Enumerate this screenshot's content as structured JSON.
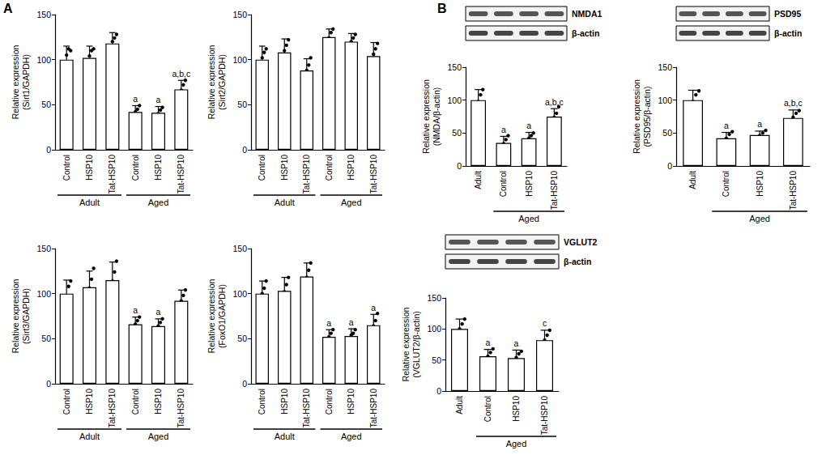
{
  "panel_labels": [
    "A",
    "B"
  ],
  "chart_data": [
    {
      "type": "bar",
      "ylabel": "Relative expression\n(Sirt1/GAPDH)",
      "categories": [
        "Control",
        "HSP10",
        "Tat-HSP10",
        "Control",
        "HSP10",
        "Tat-HSP10"
      ],
      "category_groups": [
        "Adult",
        "Adult",
        "Adult",
        "Aged",
        "Aged",
        "Aged"
      ],
      "values": [
        100,
        102,
        118,
        42,
        41,
        67
      ],
      "errors": [
        15,
        13,
        12,
        7,
        7,
        10
      ],
      "points": [
        [
          85,
          92,
          105,
          112,
          110
        ],
        [
          88,
          96,
          104,
          110,
          112
        ],
        [
          104,
          112,
          120,
          124,
          128
        ],
        [
          36,
          38,
          42,
          45,
          49
        ],
        [
          34,
          38,
          40,
          44,
          47
        ],
        [
          58,
          62,
          66,
          72,
          77
        ]
      ],
      "letters": [
        null,
        null,
        null,
        "a",
        "a",
        "a,b,c"
      ],
      "color": "#ffffff",
      "ylim": [
        0,
        150
      ],
      "yticks": [
        0,
        50,
        100,
        150
      ],
      "grid": false
    },
    {
      "type": "bar",
      "ylabel": "Relative expression\n(Sirt2/GAPDH)",
      "categories": [
        "Control",
        "HSP10",
        "Tat-HSP10",
        "Control",
        "HSP10",
        "Tat-HSP10"
      ],
      "category_groups": [
        "Adult",
        "Adult",
        "Adult",
        "Aged",
        "Aged",
        "Aged"
      ],
      "values": [
        100,
        108,
        88,
        125,
        120,
        104
      ],
      "errors": [
        15,
        15,
        13,
        9,
        9,
        15
      ],
      "points": [
        [
          85,
          95,
          102,
          108,
          112
        ],
        [
          94,
          100,
          110,
          116,
          122
        ],
        [
          74,
          82,
          88,
          94,
          102
        ],
        [
          115,
          120,
          124,
          130,
          134
        ],
        [
          110,
          116,
          120,
          124,
          128
        ],
        [
          88,
          96,
          106,
          112,
          118
        ]
      ],
      "letters": [
        null,
        null,
        null,
        null,
        null,
        null
      ],
      "color": "#ffffff",
      "ylim": [
        0,
        150
      ],
      "yticks": [
        0,
        50,
        100,
        150
      ],
      "grid": false
    },
    {
      "type": "bar",
      "ylabel": "Relative expression\n(Sirt3/GAPDH)",
      "categories": [
        "Control",
        "HSP10",
        "Tat-HSP10",
        "Control",
        "HSP10",
        "Tat-HSP10"
      ],
      "category_groups": [
        "Adult",
        "Adult",
        "Adult",
        "Aged",
        "Aged",
        "Aged"
      ],
      "values": [
        100,
        107,
        115,
        66,
        64,
        92
      ],
      "errors": [
        15,
        18,
        20,
        8,
        8,
        12
      ],
      "points": [
        [
          86,
          92,
          98,
          108,
          114
        ],
        [
          88,
          96,
          106,
          116,
          128
        ],
        [
          96,
          104,
          114,
          124,
          136
        ],
        [
          58,
          62,
          66,
          70,
          74
        ],
        [
          56,
          60,
          64,
          68,
          72
        ],
        [
          80,
          86,
          92,
          98,
          104
        ]
      ],
      "letters": [
        null,
        null,
        null,
        "a",
        "a",
        null
      ],
      "color": "#ffffff",
      "ylim": [
        0,
        150
      ],
      "yticks": [
        0,
        50,
        100,
        150
      ],
      "grid": false
    },
    {
      "type": "bar",
      "ylabel": "Relative expression\n(FoxO1/GAPDH)",
      "categories": [
        "Control",
        "HSP10",
        "Tat-HSP10",
        "Control",
        "HSP10",
        "Tat-HSP10"
      ],
      "category_groups": [
        "Adult",
        "Adult",
        "Adult",
        "Aged",
        "Aged",
        "Aged"
      ],
      "values": [
        100,
        103,
        119,
        52,
        53,
        65
      ],
      "errors": [
        14,
        15,
        15,
        8,
        8,
        12
      ],
      "points": [
        [
          86,
          92,
          100,
          106,
          114
        ],
        [
          88,
          96,
          102,
          110,
          118
        ],
        [
          104,
          112,
          118,
          126,
          134
        ],
        [
          44,
          48,
          52,
          56,
          60
        ],
        [
          44,
          50,
          54,
          56,
          60
        ],
        [
          52,
          58,
          64,
          70,
          78
        ]
      ],
      "letters": [
        null,
        null,
        null,
        "a",
        "a",
        "a"
      ],
      "color": "#ffffff",
      "ylim": [
        0,
        150
      ],
      "yticks": [
        0,
        50,
        100,
        150
      ],
      "grid": false
    },
    {
      "type": "bar",
      "ylabel": "Relative expression\n(NMDA/β-actin)",
      "blot_labels": [
        "NMDA1",
        "β-actin"
      ],
      "categories": [
        "Adult",
        "Control",
        "HSP10",
        "Tat-HSP10"
      ],
      "category_groups": [
        null,
        "Aged",
        "Aged",
        "Aged"
      ],
      "values": [
        100,
        35,
        42,
        75
      ],
      "errors": [
        16,
        10,
        9,
        12
      ],
      "points": [
        [
          86,
          92,
          98,
          108,
          116
        ],
        [
          24,
          30,
          34,
          40,
          46
        ],
        [
          34,
          38,
          42,
          46,
          50
        ],
        [
          62,
          68,
          74,
          80,
          90
        ]
      ],
      "letters": [
        null,
        "a",
        "a",
        "a,b,c"
      ],
      "color": "#ffffff",
      "ylim": [
        0,
        150
      ],
      "yticks": [
        0,
        50,
        100,
        150
      ],
      "grid": false
    },
    {
      "type": "bar",
      "ylabel": "Relative expression\n(PSD95/β-actin)",
      "blot_labels": [
        "PSD95",
        "β-actin"
      ],
      "categories": [
        "Adult",
        "Control",
        "HSP10",
        "Tat-HSP10"
      ],
      "category_groups": [
        null,
        "Aged",
        "Aged",
        "Aged"
      ],
      "values": [
        100,
        42,
        47,
        73
      ],
      "errors": [
        15,
        9,
        6,
        12
      ],
      "points": [
        [
          86,
          92,
          98,
          108,
          114
        ],
        [
          32,
          36,
          42,
          48,
          52
        ],
        [
          40,
          44,
          46,
          50,
          54
        ],
        [
          62,
          66,
          74,
          80,
          84
        ]
      ],
      "letters": [
        null,
        "a",
        "a",
        "a,b,c"
      ],
      "color": "#ffffff",
      "ylim": [
        0,
        150
      ],
      "yticks": [
        0,
        50,
        100,
        150
      ],
      "grid": false
    },
    {
      "type": "bar",
      "ylabel": "Relative expression\n(VGLUT2/β-actin)",
      "blot_labels": [
        "VGLUT2",
        "β-actin"
      ],
      "categories": [
        "Adult",
        "Control",
        "HSP10",
        "Tat-HSP10"
      ],
      "category_groups": [
        null,
        "Aged",
        "Aged",
        "Aged"
      ],
      "values": [
        100,
        56,
        53,
        82
      ],
      "errors": [
        16,
        11,
        13,
        16
      ],
      "points": [
        [
          84,
          92,
          100,
          108,
          116
        ],
        [
          44,
          50,
          56,
          62,
          68
        ],
        [
          40,
          46,
          54,
          60,
          64
        ],
        [
          66,
          74,
          82,
          90,
          98
        ]
      ],
      "letters": [
        null,
        "a",
        "a",
        "c"
      ],
      "color": "#ffffff",
      "ylim": [
        0,
        150
      ],
      "yticks": [
        0,
        50,
        100,
        150
      ],
      "grid": false
    }
  ]
}
